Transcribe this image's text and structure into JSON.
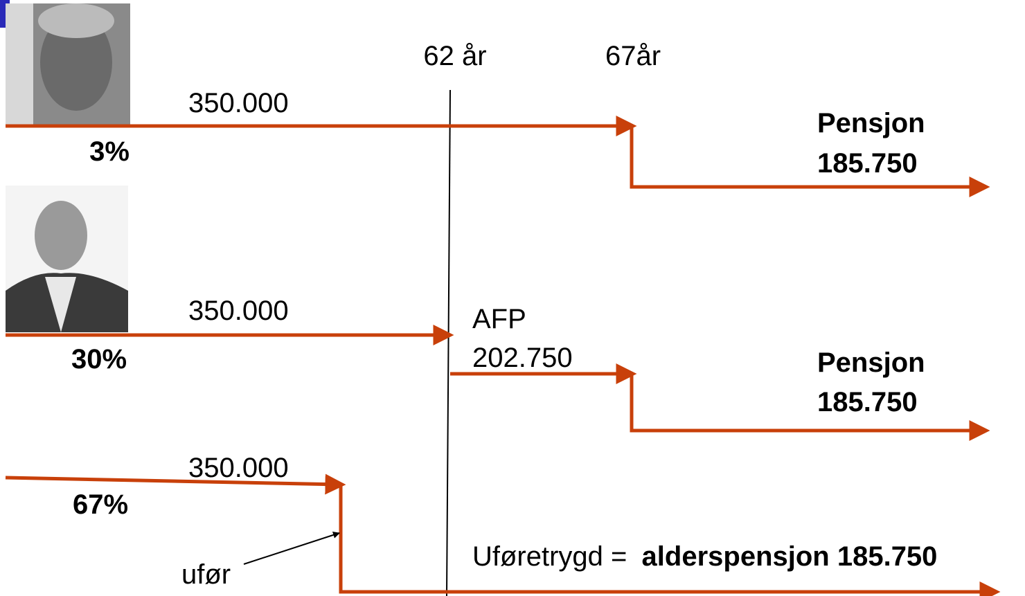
{
  "timeline": {
    "ages": [
      "62 år",
      "67år"
    ]
  },
  "persons": [
    {
      "income": "350.000",
      "share": "3%",
      "outcome": {
        "label": "Pensjon",
        "amount": "185.750"
      }
    },
    {
      "income": "350.000",
      "share": "30%",
      "afp": {
        "label": "AFP",
        "amount": "202.750"
      },
      "outcome": {
        "label": "Pensjon",
        "amount": "185.750"
      }
    },
    {
      "income": "350.000",
      "share": "67%",
      "event": "ufør",
      "outcome": {
        "label": "Uføretrygd =",
        "amount": "alderspensjon 185.750"
      }
    }
  ]
}
